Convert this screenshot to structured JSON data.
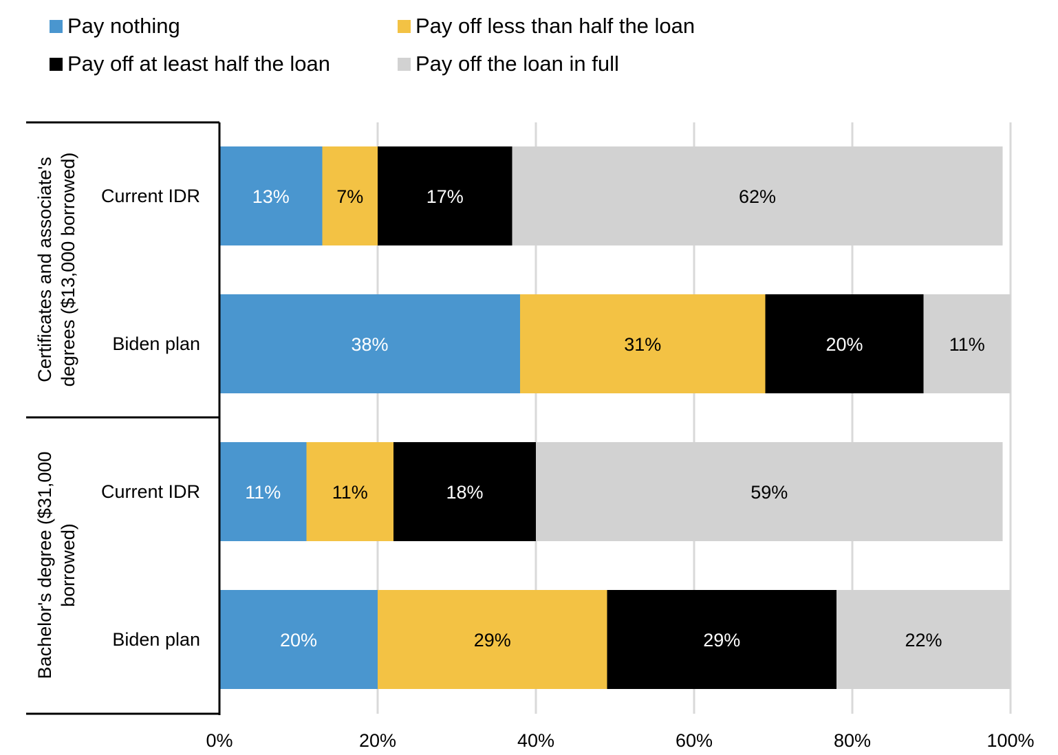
{
  "chart_data": {
    "type": "bar",
    "orientation": "horizontal",
    "stacked": true,
    "legend": {
      "placement": "top",
      "entries": [
        {
          "name": "Pay nothing",
          "color": "#4a96cf"
        },
        {
          "name": "Pay off less than half the loan",
          "color": "#f3c244"
        },
        {
          "name": "Pay off at least half the loan",
          "color": "#000000"
        },
        {
          "name": "Pay off the loan in full",
          "color": "#d2d2d2"
        }
      ]
    },
    "groups": [
      {
        "label": "Certificates and associate's degrees ($13,000 borrowed)",
        "label_lines": [
          "Certificates and associate's",
          "degrees ($13,000 borrowed)"
        ],
        "rows": [
          {
            "label": "Current IDR",
            "values": [
              13,
              7,
              17,
              62
            ],
            "display": [
              "13%",
              "7%",
              "17%",
              "62%"
            ]
          },
          {
            "label": "Biden plan",
            "values": [
              38,
              31,
              20,
              11
            ],
            "display": [
              "38%",
              "31%",
              "20%",
              "11%"
            ]
          }
        ]
      },
      {
        "label": "Bachelor's degree ($31,000 borrowed)",
        "label_lines": [
          "Bachelor's degree ($31,000",
          "borrowed)"
        ],
        "rows": [
          {
            "label": "Current IDR",
            "values": [
              11,
              11,
              18,
              59
            ],
            "display": [
              "11%",
              "11%",
              "18%",
              "59%"
            ]
          },
          {
            "label": "Biden plan",
            "values": [
              20,
              29,
              29,
              22
            ],
            "display": [
              "20%",
              "29%",
              "29%",
              "22%"
            ]
          }
        ]
      }
    ],
    "series_label_colors": [
      "#ffffff",
      "#000000",
      "#ffffff",
      "#000000"
    ],
    "xlim": [
      0,
      100
    ],
    "x_ticks": [
      0,
      20,
      40,
      60,
      80,
      100
    ],
    "x_tick_labels": [
      "0%",
      "20%",
      "40%",
      "60%",
      "80%",
      "100%"
    ],
    "grid": true,
    "gridline_color": "#d9d9d9"
  }
}
